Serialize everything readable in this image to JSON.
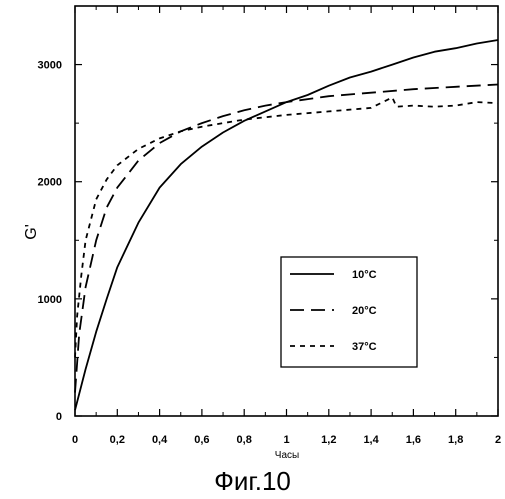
{
  "chart_data": {
    "type": "line",
    "title": "",
    "xlabel": "Часы",
    "ylabel": "G'",
    "xlim": [
      0,
      2
    ],
    "ylim": [
      0,
      3500
    ],
    "x_ticks": [
      0,
      0.2,
      0.4,
      0.6,
      0.8,
      1,
      1.2,
      1.4,
      1.6,
      1.8,
      2
    ],
    "x_tick_labels": [
      "0",
      "0,2",
      "0,4",
      "0,6",
      "0,8",
      "1",
      "1,2",
      "1,4",
      "1,6",
      "1,8",
      "2"
    ],
    "y_ticks": [
      0,
      1000,
      2000,
      3000
    ],
    "y_tick_labels": [
      "0",
      "1000",
      "2000",
      "3000"
    ],
    "grid": false,
    "legend_position": "inside-lower-right",
    "series": [
      {
        "name": "10°C",
        "style": "solid",
        "x": [
          0,
          0.05,
          0.1,
          0.15,
          0.2,
          0.3,
          0.4,
          0.5,
          0.6,
          0.7,
          0.8,
          0.9,
          1.0,
          1.1,
          1.2,
          1.3,
          1.4,
          1.5,
          1.6,
          1.7,
          1.8,
          1.9,
          2.0
        ],
        "values": [
          50,
          400,
          720,
          1000,
          1270,
          1650,
          1950,
          2150,
          2300,
          2420,
          2520,
          2600,
          2680,
          2740,
          2820,
          2890,
          2940,
          3000,
          3060,
          3110,
          3140,
          3180,
          3210
        ]
      },
      {
        "name": "20°C",
        "style": "dashed",
        "x": [
          0,
          0.02,
          0.05,
          0.1,
          0.15,
          0.2,
          0.3,
          0.4,
          0.5,
          0.6,
          0.7,
          0.8,
          0.9,
          1.0,
          1.2,
          1.4,
          1.6,
          1.8,
          2.0
        ],
        "values": [
          200,
          700,
          1100,
          1500,
          1780,
          1950,
          2180,
          2330,
          2430,
          2500,
          2560,
          2610,
          2650,
          2680,
          2730,
          2760,
          2790,
          2810,
          2830
        ]
      },
      {
        "name": "37°C",
        "style": "short-dashed",
        "x": [
          0,
          0.01,
          0.03,
          0.05,
          0.1,
          0.15,
          0.2,
          0.3,
          0.4,
          0.5,
          0.6,
          0.7,
          0.8,
          1.0,
          1.2,
          1.4,
          1.5,
          1.52,
          1.6,
          1.7,
          1.8,
          1.9,
          2.0
        ],
        "values": [
          500,
          850,
          1200,
          1500,
          1850,
          2020,
          2140,
          2280,
          2370,
          2430,
          2470,
          2500,
          2530,
          2570,
          2600,
          2630,
          2720,
          2640,
          2650,
          2640,
          2650,
          2680,
          2670
        ]
      }
    ]
  },
  "figure": {
    "caption": "Фиг.10"
  }
}
